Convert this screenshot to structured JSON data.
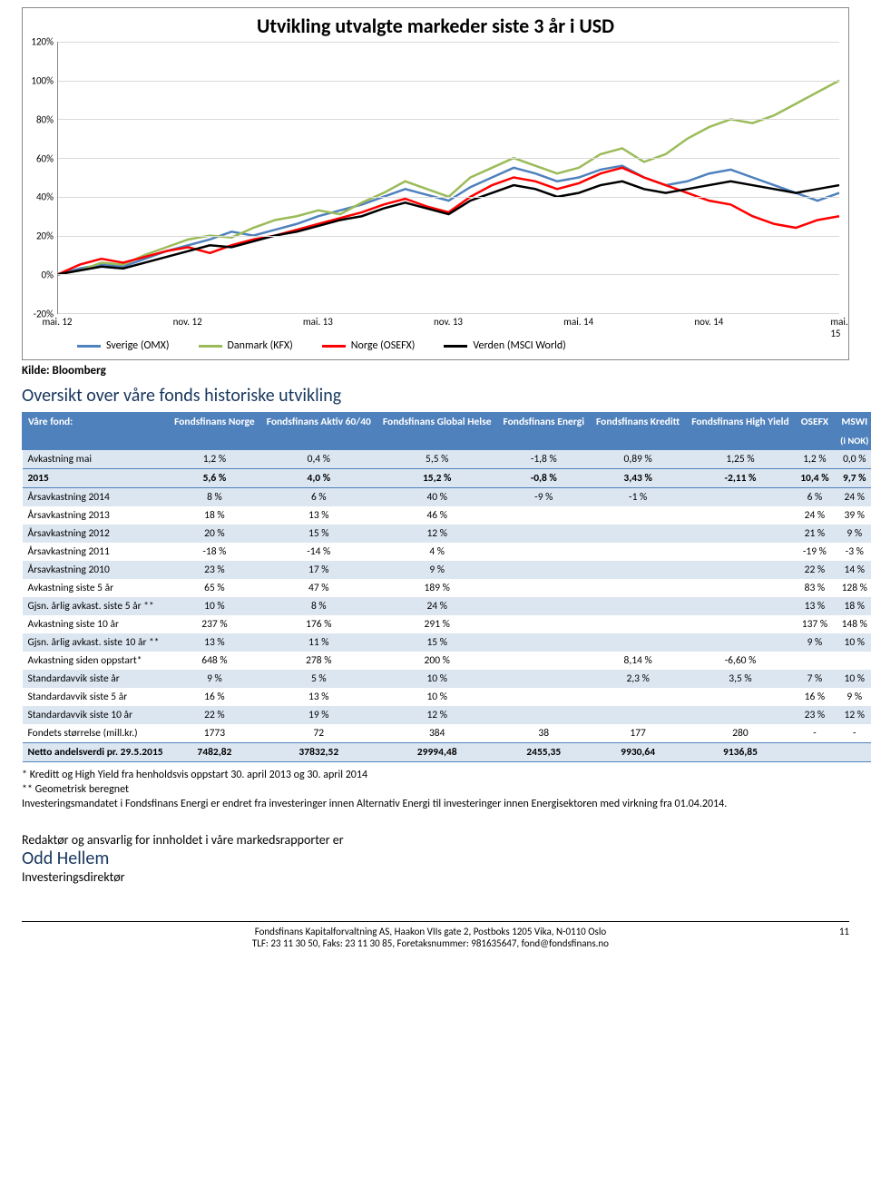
{
  "chart": {
    "title": "Utvikling  utvalgte markeder siste 3 år i USD",
    "y_ticks": [
      "-20%",
      "0%",
      "20%",
      "40%",
      "60%",
      "80%",
      "100%",
      "120%"
    ],
    "y_min": -20,
    "y_max": 120,
    "x_labels": [
      "mai. 12",
      "nov. 12",
      "mai. 13",
      "nov. 13",
      "mai. 14",
      "nov. 14",
      "mai. 15"
    ],
    "grid_color": "#d9d9d9",
    "series": [
      {
        "name": "Sverige (OMX)",
        "color": "#4f81bd",
        "width": 2.5,
        "pts": [
          0,
          3,
          5,
          4,
          8,
          12,
          15,
          18,
          22,
          20,
          23,
          26,
          30,
          33,
          36,
          40,
          44,
          41,
          38,
          45,
          50,
          55,
          52,
          48,
          50,
          54,
          56,
          50,
          46,
          48,
          52,
          54,
          50,
          46,
          42,
          38,
          42
        ]
      },
      {
        "name": "Danmark (KFX)",
        "color": "#9bbb59",
        "width": 2.5,
        "pts": [
          0,
          2,
          6,
          5,
          10,
          14,
          18,
          20,
          19,
          24,
          28,
          30,
          33,
          31,
          37,
          42,
          48,
          44,
          40,
          50,
          55,
          60,
          56,
          52,
          55,
          62,
          65,
          58,
          62,
          70,
          76,
          80,
          78,
          82,
          88,
          94,
          100
        ]
      },
      {
        "name": "Norge (OSEFX)",
        "color": "#ff0000",
        "width": 2.5,
        "pts": [
          0,
          5,
          8,
          6,
          9,
          12,
          14,
          11,
          15,
          18,
          20,
          23,
          26,
          29,
          32,
          36,
          39,
          35,
          32,
          40,
          46,
          50,
          48,
          44,
          47,
          52,
          55,
          50,
          46,
          42,
          38,
          36,
          30,
          26,
          24,
          28,
          30
        ]
      },
      {
        "name": "Verden (MSCI World)",
        "color": "#000000",
        "width": 2.5,
        "pts": [
          0,
          2,
          4,
          3,
          6,
          9,
          12,
          15,
          14,
          17,
          20,
          22,
          25,
          28,
          30,
          34,
          37,
          34,
          31,
          38,
          42,
          46,
          44,
          40,
          42,
          46,
          48,
          44,
          42,
          44,
          46,
          48,
          46,
          44,
          42,
          44,
          46
        ]
      }
    ],
    "legend": [
      {
        "label": "Sverige (OMX)",
        "color": "#4f81bd"
      },
      {
        "label": "Danmark (KFX)",
        "color": "#9bbb59"
      },
      {
        "label": "Norge (OSEFX)",
        "color": "#ff0000"
      },
      {
        "label": "Verden (MSCI World)",
        "color": "#000000"
      }
    ]
  },
  "source_label": "Kilde: Bloomberg",
  "overview_title": "Oversikt over våre fonds historiske utvikling",
  "table": {
    "header_row1": [
      "Våre fond:",
      "Fondsfinans Norge",
      "Fondsfinans Aktiv 60/40",
      "Fondsfinans Global Helse",
      "Fondsfinans Energi",
      "Fondsfinans Kreditt",
      "Fondsfinans High Yield",
      "OSEFX",
      "MSWI"
    ],
    "header_row2": [
      "",
      "",
      "",
      "",
      "",
      "",
      "",
      "",
      "(i NOK)"
    ],
    "rows": [
      {
        "band": 0,
        "cells": [
          "Avkastning mai",
          "1,2 %",
          "0,4 %",
          "5,5 %",
          "-1,8 %",
          "0,89 %",
          "1,25 %",
          "1,2 %",
          "0,0 %"
        ]
      },
      {
        "band": 1,
        "bold": true,
        "cells": [
          "2015",
          "5,6 %",
          "4,0 %",
          "15,2 %",
          "-0,8 %",
          "3,43 %",
          "-2,11 %",
          "10,4 %",
          "9,7 %"
        ]
      },
      {
        "band": 0,
        "cells": [
          "Årsavkastning 2014",
          "8 %",
          "6 %",
          "40 %",
          "-9 %",
          "-1 %",
          "",
          "6 %",
          "24 %"
        ]
      },
      {
        "band": 1,
        "cells": [
          "Årsavkastning 2013",
          "18 %",
          "13 %",
          "46 %",
          "",
          "",
          "",
          "24 %",
          "39 %"
        ]
      },
      {
        "band": 0,
        "cells": [
          "Årsavkastning 2012",
          "20 %",
          "15 %",
          "12 %",
          "",
          "",
          "",
          "21 %",
          "9 %"
        ]
      },
      {
        "band": 1,
        "cells": [
          "Årsavkastning 2011",
          "-18 %",
          "-14 %",
          "4 %",
          "",
          "",
          "",
          "-19 %",
          "-3 %"
        ]
      },
      {
        "band": 0,
        "cells": [
          "Årsavkastning 2010",
          "23 %",
          "17 %",
          "9 %",
          "",
          "",
          "",
          "22 %",
          "14 %"
        ]
      },
      {
        "band": 1,
        "cells": [
          "Avkastning siste 5 år",
          "65 %",
          "47 %",
          "189 %",
          "",
          "",
          "",
          "83 %",
          "128 %"
        ]
      },
      {
        "band": 0,
        "cells": [
          "Gjsn. årlig avkast. siste 5 år **",
          "10 %",
          "8 %",
          "24 %",
          "",
          "",
          "",
          "13 %",
          "18 %"
        ]
      },
      {
        "band": 1,
        "cells": [
          "Avkastning siste 10 år",
          "237 %",
          "176 %",
          "291 %",
          "",
          "",
          "",
          "137 %",
          "148 %"
        ]
      },
      {
        "band": 0,
        "cells": [
          "Gjsn. årlig avkast. siste 10 år **",
          "13 %",
          "11 %",
          "15 %",
          "",
          "",
          "",
          "9 %",
          "10 %"
        ]
      },
      {
        "band": 1,
        "cells": [
          "Avkastning siden oppstart*",
          "648 %",
          "278 %",
          "200 %",
          "",
          "8,14 %",
          "-6,60 %",
          "",
          ""
        ]
      },
      {
        "band": 0,
        "cells": [
          "Standardavvik siste år",
          "9 %",
          "5 %",
          "10 %",
          "",
          "2,3 %",
          "3,5 %",
          "7 %",
          "10 %"
        ]
      },
      {
        "band": 1,
        "cells": [
          "Standardavvik siste 5 år",
          "16 %",
          "13 %",
          "10 %",
          "",
          "",
          "",
          "16 %",
          "9 %"
        ]
      },
      {
        "band": 0,
        "cells": [
          "Standardavvik siste 10 år",
          "22 %",
          "19 %",
          "12 %",
          "",
          "",
          "",
          "23 %",
          "12 %"
        ]
      },
      {
        "band": 1,
        "cells": [
          "Fondets størrelse (mill.kr.)",
          "1773",
          "72",
          "384",
          "38",
          "177",
          "280",
          "-",
          "-"
        ]
      },
      {
        "band": 0,
        "bold": true,
        "cells": [
          "Netto andelsverdi pr. 29.5.2015",
          "7482,82",
          "37832,52",
          "29994,48",
          "2455,35",
          "9930,64",
          "9136,85",
          "",
          ""
        ]
      }
    ]
  },
  "footnotes": [
    "*  Kreditt og High Yield  fra henholdsvis oppstart 30. april 2013 og  30. april  2014",
    "** Geometrisk beregnet",
    "Investeringsmandatet i Fondsfinans Energi er endret fra investeringer innen Alternativ Energi til investeringer innen Energisektoren med virkning fra 01.04.2014."
  ],
  "editor": {
    "line1": "Redaktør og ansvarlig for innholdet i våre markedsrapporter er",
    "name": "Odd Hellem",
    "title": "Investeringsdirektør"
  },
  "footer": {
    "line1": "Fondsfinans Kapitalforvaltning AS, Haakon VIIs gate 2, Postboks 1205 Vika, N-0110 Oslo",
    "line2": "TLF: 23 11 30 50, Faks: 23 11 30 85, Foretaksnummer: 981635647, fond@fondsfinans.no",
    "page": "11"
  }
}
